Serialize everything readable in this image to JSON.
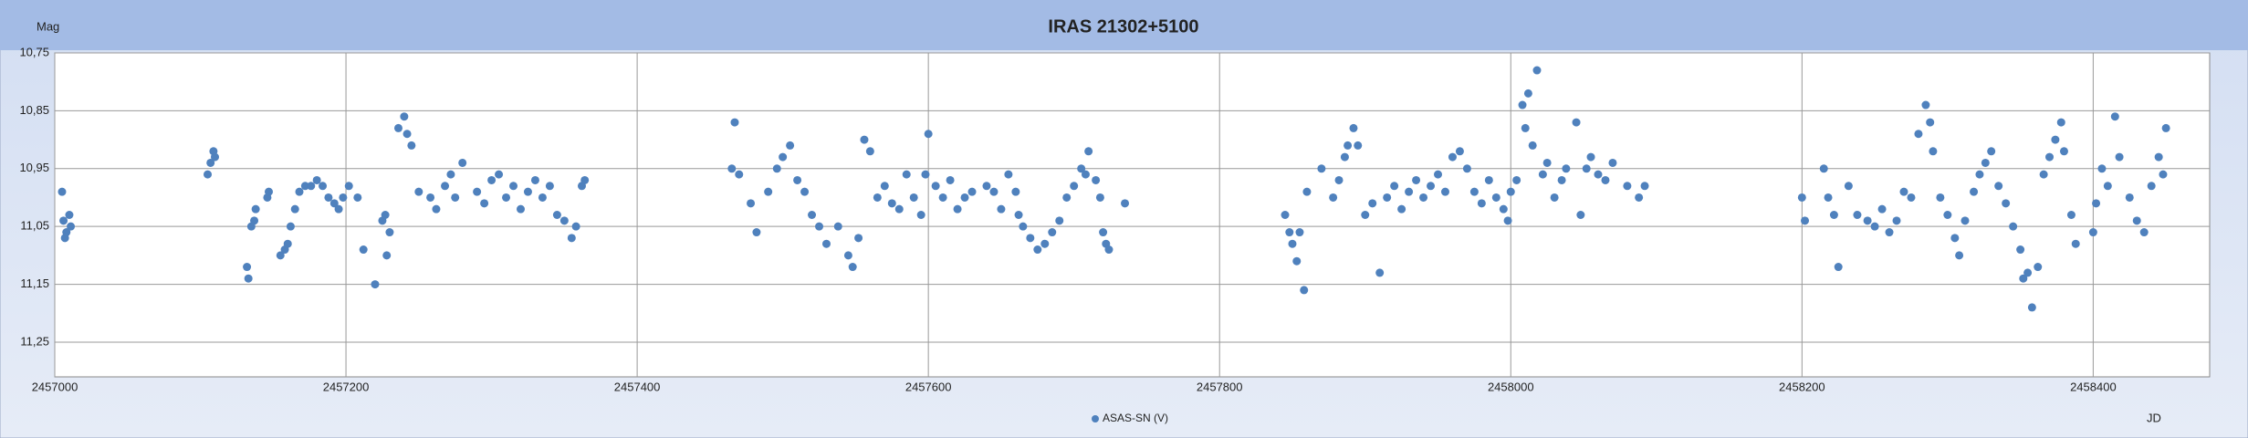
{
  "chart_data": {
    "type": "scatter",
    "title": "IRAS 21302+5100",
    "y_label": "Mag",
    "x_label": "JD",
    "xlim": [
      2457000,
      2458480
    ],
    "xticks": [
      2457000,
      2457200,
      2457400,
      2457600,
      2457800,
      2458000,
      2458200,
      2458400
    ],
    "ylim": [
      10.75,
      11.31
    ],
    "invert_y": true,
    "yticks": [
      {
        "value": 10.75,
        "label": "10,75"
      },
      {
        "value": 10.85,
        "label": "10,85"
      },
      {
        "value": 10.95,
        "label": "10,95"
      },
      {
        "value": 11.05,
        "label": "11,05"
      },
      {
        "value": 11.15,
        "label": "11,15"
      },
      {
        "value": 11.25,
        "label": "11,25"
      }
    ],
    "grid": true,
    "legend": "bottom",
    "series": [
      {
        "name": "ASAS-SN (V)",
        "color": "#4f81bd",
        "x": [
          2457005,
          2457006,
          2457007,
          2457008,
          2457010,
          2457011,
          2457105,
          2457107,
          2457109,
          2457110,
          2457132,
          2457133,
          2457135,
          2457137,
          2457138,
          2457146,
          2457147,
          2457155,
          2457158,
          2457160,
          2457162,
          2457165,
          2457168,
          2457172,
          2457176,
          2457180,
          2457184,
          2457188,
          2457192,
          2457195,
          2457198,
          2457202,
          2457208,
          2457212,
          2457220,
          2457225,
          2457227,
          2457228,
          2457230,
          2457236,
          2457240,
          2457242,
          2457245,
          2457250,
          2457258,
          2457262,
          2457268,
          2457272,
          2457275,
          2457280,
          2457290,
          2457295,
          2457300,
          2457305,
          2457310,
          2457315,
          2457320,
          2457325,
          2457330,
          2457335,
          2457340,
          2457345,
          2457350,
          2457355,
          2457358,
          2457362,
          2457364,
          2457465,
          2457467,
          2457470,
          2457478,
          2457482,
          2457490,
          2457496,
          2457500,
          2457505,
          2457510,
          2457515,
          2457520,
          2457525,
          2457530,
          2457538,
          2457545,
          2457548,
          2457552,
          2457556,
          2457560,
          2457565,
          2457570,
          2457575,
          2457580,
          2457585,
          2457590,
          2457595,
          2457598,
          2457600,
          2457605,
          2457610,
          2457615,
          2457620,
          2457625,
          2457630,
          2457640,
          2457645,
          2457650,
          2457655,
          2457660,
          2457662,
          2457665,
          2457670,
          2457675,
          2457680,
          2457685,
          2457690,
          2457695,
          2457700,
          2457705,
          2457708,
          2457710,
          2457715,
          2457718,
          2457720,
          2457722,
          2457724,
          2457735,
          2457845,
          2457848,
          2457850,
          2457853,
          2457855,
          2457858,
          2457860,
          2457870,
          2457878,
          2457882,
          2457886,
          2457888,
          2457892,
          2457895,
          2457900,
          2457905,
          2457910,
          2457915,
          2457920,
          2457925,
          2457930,
          2457935,
          2457940,
          2457945,
          2457950,
          2457955,
          2457960,
          2457965,
          2457970,
          2457975,
          2457980,
          2457985,
          2457990,
          2457995,
          2457998,
          2458000,
          2458004,
          2458008,
          2458010,
          2458012,
          2458015,
          2458018,
          2458022,
          2458025,
          2458030,
          2458035,
          2458038,
          2458045,
          2458048,
          2458052,
          2458055,
          2458060,
          2458065,
          2458070,
          2458080,
          2458088,
          2458092,
          2458200,
          2458202,
          2458215,
          2458218,
          2458222,
          2458225,
          2458232,
          2458238,
          2458245,
          2458250,
          2458255,
          2458260,
          2458265,
          2458270,
          2458275,
          2458280,
          2458285,
          2458288,
          2458290,
          2458295,
          2458300,
          2458305,
          2458308,
          2458312,
          2458318,
          2458322,
          2458326,
          2458330,
          2458335,
          2458340,
          2458345,
          2458350,
          2458352,
          2458355,
          2458358,
          2458362,
          2458366,
          2458370,
          2458374,
          2458378,
          2458380,
          2458385,
          2458388,
          2458400,
          2458402,
          2458406,
          2458410,
          2458415,
          2458418,
          2458425,
          2458430,
          2458435,
          2458440,
          2458445,
          2458448,
          2458450
        ],
        "values": [
          10.99,
          11.04,
          11.07,
          11.06,
          11.03,
          11.05,
          10.96,
          10.94,
          10.92,
          10.93,
          11.12,
          11.14,
          11.05,
          11.04,
          11.02,
          11.0,
          10.99,
          11.1,
          11.09,
          11.08,
          11.05,
          11.02,
          10.99,
          10.98,
          10.98,
          10.97,
          10.98,
          11.0,
          11.01,
          11.02,
          11.0,
          10.98,
          11.0,
          11.09,
          11.15,
          11.04,
          11.03,
          11.1,
          11.06,
          10.88,
          10.86,
          10.89,
          10.91,
          10.99,
          11.0,
          11.02,
          10.98,
          10.96,
          11.0,
          10.94,
          10.99,
          11.01,
          10.97,
          10.96,
          11.0,
          10.98,
          11.02,
          10.99,
          10.97,
          11.0,
          10.98,
          11.03,
          11.04,
          11.07,
          11.05,
          10.98,
          10.97,
          10.95,
          10.87,
          10.96,
          11.01,
          11.06,
          10.99,
          10.95,
          10.93,
          10.91,
          10.97,
          10.99,
          11.03,
          11.05,
          11.08,
          11.05,
          11.1,
          11.12,
          11.07,
          10.9,
          10.92,
          11.0,
          10.98,
          11.01,
          11.02,
          10.96,
          11.0,
          11.03,
          10.96,
          10.89,
          10.98,
          11.0,
          10.97,
          11.02,
          11.0,
          10.99,
          10.98,
          10.99,
          11.02,
          10.96,
          10.99,
          11.03,
          11.05,
          11.07,
          11.09,
          11.08,
          11.06,
          11.04,
          11.0,
          10.98,
          10.95,
          10.96,
          10.92,
          10.97,
          11.0,
          11.06,
          11.08,
          11.09,
          11.01,
          11.03,
          11.06,
          11.08,
          11.11,
          11.06,
          11.16,
          10.99,
          10.95,
          11.0,
          10.97,
          10.93,
          10.91,
          10.88,
          10.91,
          11.03,
          11.01,
          11.13,
          11.0,
          10.98,
          11.02,
          10.99,
          10.97,
          11.0,
          10.98,
          10.96,
          10.99,
          10.93,
          10.92,
          10.95,
          10.99,
          11.01,
          10.97,
          11.0,
          11.02,
          11.04,
          10.99,
          10.97,
          10.84,
          10.88,
          10.82,
          10.91,
          10.78,
          10.96,
          10.94,
          11.0,
          10.97,
          10.95,
          10.87,
          11.03,
          10.95,
          10.93,
          10.96,
          10.97,
          10.94,
          10.98,
          11.0,
          10.98,
          11.0,
          11.04,
          10.95,
          11.0,
          11.03,
          11.12,
          10.98,
          11.03,
          11.04,
          11.05,
          11.02,
          11.06,
          11.04,
          10.99,
          11.0,
          10.89,
          10.84,
          10.87,
          10.92,
          11.0,
          11.03,
          11.07,
          11.1,
          11.04,
          10.99,
          10.96,
          10.94,
          10.92,
          10.98,
          11.01,
          11.05,
          11.09,
          11.14,
          11.13,
          11.19,
          11.12,
          10.96,
          10.93,
          10.9,
          10.87,
          10.92,
          11.03,
          11.08,
          11.06,
          11.01,
          10.95,
          10.98,
          10.86,
          10.93,
          11.0,
          11.04,
          11.06,
          10.98,
          10.93,
          10.96,
          10.88
        ]
      }
    ]
  }
}
